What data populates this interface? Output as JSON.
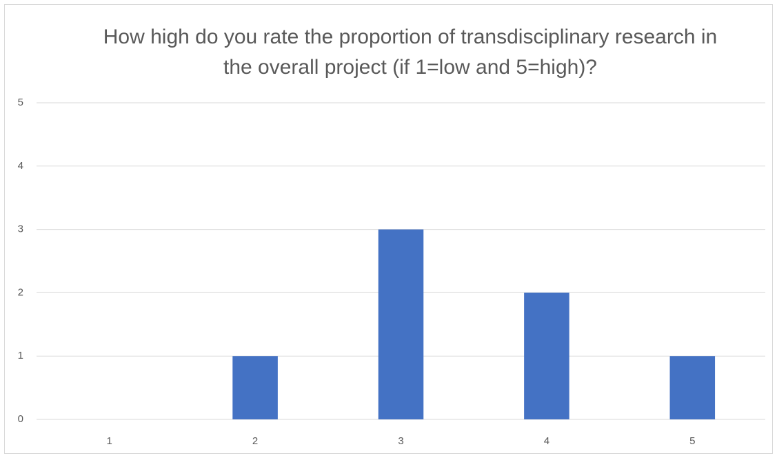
{
  "chart_data": {
    "type": "bar",
    "title": "How high do you rate the proportion of transdisciplinary research in the overall project (if 1=low and 5=high)?",
    "categories": [
      "1",
      "2",
      "3",
      "4",
      "5"
    ],
    "values": [
      0,
      1,
      3,
      2,
      1
    ],
    "color": "#4472c4",
    "ylim": [
      0,
      5
    ],
    "yticks": [
      0,
      1,
      2,
      3,
      4,
      5
    ],
    "grid": true
  }
}
